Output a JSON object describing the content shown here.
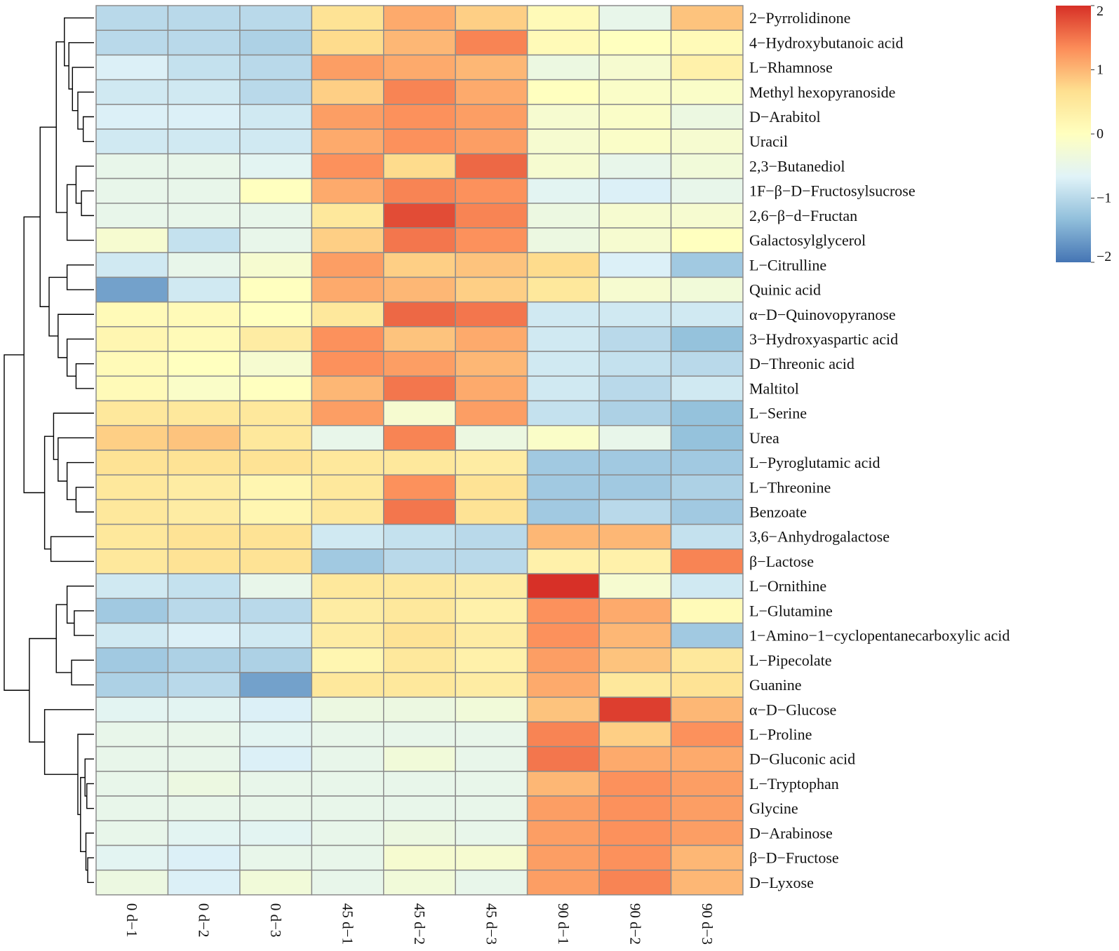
{
  "chart_data": {
    "type": "heatmap",
    "title": "",
    "columns": [
      "0 d−1",
      "0 d−2",
      "0 d−3",
      "45 d−1",
      "45 d−2",
      "45 d−3",
      "90 d−1",
      "90 d−2",
      "90 d−3"
    ],
    "rows": [
      "2−Pyrrolidinone",
      "4−Hydroxybutanoic acid",
      "L−Rhamnose",
      "Methyl hexopyranoside",
      "D−Arabitol",
      "Uracil",
      "2,3−Butanediol",
      "1F−β−D−Fructosylsucrose",
      "2,6−β−d−Fructan",
      "Galactosylglycerol",
      "L−Citrulline",
      "Quinic acid",
      "α−D−Quinovopyranose",
      "3−Hydroxyaspartic acid",
      "D−Threonic acid",
      "Maltitol",
      "L−Serine",
      "Urea",
      "L−Pyroglutamic acid",
      "L−Threonine",
      "Benzoate",
      "3,6−Anhydrogalactose",
      "β−Lactose",
      "L−Ornithine",
      "L−Glutamine",
      "1−Amino−1−cyclopentanecarboxylic acid",
      "L−Pipecolate",
      "Guanine",
      "α−D−Glucose",
      "L−Proline",
      "D−Gluconic acid",
      "L−Tryptophan",
      "Glycine",
      "D−Arabinose",
      "β−D−Fructose",
      "D−Lyxose"
    ],
    "values": [
      [
        -1.0,
        -1.0,
        -1.0,
        0.6,
        1.1,
        0.8,
        0.1,
        -0.5,
        0.9
      ],
      [
        -1.0,
        -1.0,
        -1.1,
        0.7,
        1.0,
        1.4,
        0.1,
        0.0,
        0.1
      ],
      [
        -0.7,
        -0.9,
        -1.0,
        1.2,
        1.1,
        1.0,
        -0.4,
        -0.2,
        0.3
      ],
      [
        -0.8,
        -0.8,
        -1.0,
        0.8,
        1.4,
        1.1,
        0.0,
        -0.1,
        -0.1
      ],
      [
        -0.7,
        -0.7,
        -0.8,
        1.2,
        1.3,
        1.2,
        -0.2,
        -0.1,
        -0.4
      ],
      [
        -0.8,
        -0.8,
        -0.8,
        1.1,
        1.3,
        1.2,
        -0.2,
        -0.1,
        -0.2
      ],
      [
        -0.5,
        -0.5,
        -0.6,
        1.3,
        0.7,
        1.6,
        -0.2,
        -0.5,
        -0.3
      ],
      [
        -0.5,
        -0.5,
        0.0,
        1.1,
        1.4,
        1.3,
        -0.6,
        -0.7,
        -0.5
      ],
      [
        -0.5,
        -0.5,
        -0.5,
        0.5,
        1.8,
        1.4,
        -0.4,
        -0.2,
        -0.2
      ],
      [
        -0.2,
        -0.9,
        -0.5,
        0.8,
        1.5,
        1.3,
        -0.4,
        -0.2,
        0.0
      ],
      [
        -0.8,
        -0.5,
        -0.2,
        1.2,
        0.8,
        0.9,
        0.7,
        -0.7,
        -1.2
      ],
      [
        -1.6,
        -0.8,
        0.0,
        1.1,
        1.0,
        0.8,
        0.5,
        -0.2,
        -0.3
      ],
      [
        0.1,
        0.1,
        0.0,
        0.5,
        1.6,
        1.5,
        -0.8,
        -0.8,
        -0.8
      ],
      [
        0.2,
        0.1,
        0.4,
        1.3,
        0.9,
        1.1,
        -0.8,
        -1.0,
        -1.3
      ],
      [
        0.1,
        0.0,
        -0.2,
        1.3,
        1.2,
        1.0,
        -0.8,
        -0.9,
        -1.0
      ],
      [
        0.1,
        -0.1,
        0.0,
        1.0,
        1.5,
        1.1,
        -0.8,
        -1.0,
        -0.8
      ],
      [
        0.5,
        0.5,
        0.5,
        1.2,
        -0.2,
        1.2,
        -0.9,
        -1.1,
        -1.3
      ],
      [
        0.8,
        0.9,
        0.5,
        -0.5,
        1.4,
        -0.4,
        -0.1,
        -0.5,
        -1.3
      ],
      [
        0.6,
        0.6,
        0.6,
        0.5,
        0.5,
        0.4,
        -1.2,
        -1.2,
        -1.2
      ],
      [
        0.5,
        0.4,
        0.2,
        0.5,
        1.3,
        0.6,
        -1.2,
        -1.2,
        -1.1
      ],
      [
        0.5,
        0.4,
        0.2,
        0.5,
        1.5,
        0.6,
        -1.2,
        -1.0,
        -1.2
      ],
      [
        0.5,
        0.6,
        0.6,
        -0.8,
        -0.9,
        -1.0,
        1.0,
        1.0,
        -0.9
      ],
      [
        0.5,
        0.6,
        0.6,
        -1.2,
        -1.0,
        -1.0,
        0.3,
        0.3,
        1.4
      ],
      [
        -0.8,
        -0.9,
        -0.5,
        0.5,
        0.5,
        0.4,
        2.0,
        -0.2,
        -0.8
      ],
      [
        -1.2,
        -1.0,
        -1.0,
        0.4,
        0.5,
        0.3,
        1.3,
        1.1,
        0.1
      ],
      [
        -0.8,
        -0.7,
        -0.8,
        0.4,
        0.6,
        0.4,
        1.3,
        1.0,
        -1.2
      ],
      [
        -1.2,
        -1.1,
        -1.1,
        0.2,
        0.5,
        0.3,
        1.2,
        0.9,
        0.5
      ],
      [
        -1.1,
        -1.0,
        -1.6,
        0.5,
        0.5,
        0.4,
        1.1,
        0.5,
        0.6
      ],
      [
        -0.6,
        -0.6,
        -0.7,
        -0.4,
        -0.4,
        -0.3,
        0.9,
        1.9,
        1.0
      ],
      [
        -0.5,
        -0.5,
        -0.6,
        -0.5,
        -0.5,
        -0.5,
        1.4,
        0.8,
        1.3
      ],
      [
        -0.5,
        -0.5,
        -0.7,
        -0.5,
        -0.3,
        -0.5,
        1.5,
        1.1,
        1.1
      ],
      [
        -0.5,
        -0.4,
        -0.5,
        -0.5,
        -0.5,
        -0.5,
        1.0,
        1.3,
        1.2
      ],
      [
        -0.5,
        -0.5,
        -0.5,
        -0.5,
        -0.5,
        -0.5,
        1.2,
        1.3,
        1.2
      ],
      [
        -0.5,
        -0.6,
        -0.6,
        -0.5,
        -0.4,
        -0.5,
        1.2,
        1.3,
        1.2
      ],
      [
        -0.6,
        -0.7,
        -0.5,
        -0.5,
        -0.2,
        -0.2,
        1.2,
        1.3,
        1.0
      ],
      [
        -0.4,
        -0.7,
        -0.3,
        -0.5,
        -0.3,
        -0.5,
        1.2,
        1.4,
        1.0
      ]
    ],
    "color_scale": {
      "min": -2,
      "max": 2,
      "stops": [
        "#4575B4",
        "#91BFDB",
        "#E0F3F8",
        "#FFFFBF",
        "#FEE090",
        "#FC8D59",
        "#D73027"
      ],
      "ticks": [
        2,
        1,
        0,
        -1,
        -2
      ],
      "tick_labels": [
        "2",
        "1",
        "0",
        "−1",
        "−2"
      ]
    },
    "row_dendrogram": true,
    "legend_position": "top-right"
  }
}
